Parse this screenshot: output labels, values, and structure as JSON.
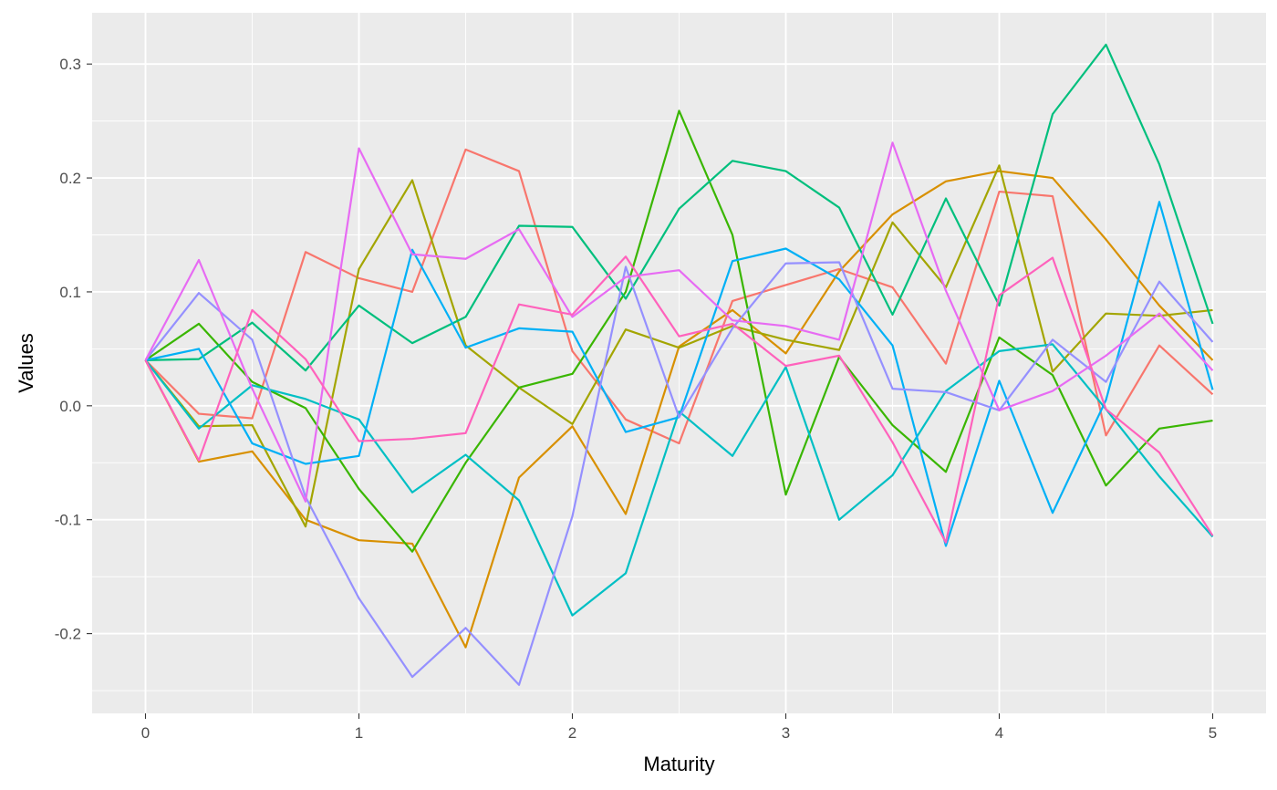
{
  "chart_data": {
    "type": "line",
    "xlabel": "Maturity",
    "ylabel": "Values",
    "xlim": [
      -0.25,
      5.25
    ],
    "ylim": [
      -0.27,
      0.345
    ],
    "x_ticks": [
      0,
      1,
      2,
      3,
      4,
      5
    ],
    "x_tick_labels": [
      "0",
      "1",
      "2",
      "3",
      "4",
      "5"
    ],
    "y_ticks": [
      -0.2,
      -0.1,
      0.0,
      0.1,
      0.2,
      0.3
    ],
    "y_tick_labels": [
      "-0.2",
      "-0.1",
      "0.0",
      "0.1",
      "0.2",
      "0.3"
    ],
    "grid": true,
    "legend": "none",
    "background": "#ebebeb",
    "x": [
      0,
      0.25,
      0.5,
      0.75,
      1,
      1.25,
      1.5,
      1.75,
      2,
      2.25,
      2.5,
      2.75,
      3,
      3.25,
      3.5,
      3.75,
      4,
      4.25,
      4.5,
      4.75,
      5
    ],
    "series": [
      {
        "color": "#F8766D",
        "values": [
          0.04,
          -0.007,
          -0.011,
          0.135,
          0.112,
          0.1,
          0.225,
          0.206,
          0.048,
          -0.012,
          -0.033,
          0.092,
          0.106,
          0.12,
          0.104,
          0.037,
          0.188,
          0.184,
          -0.026,
          0.053,
          0.01
        ]
      },
      {
        "color": "#D89000",
        "values": [
          0.04,
          -0.049,
          -0.04,
          -0.1,
          -0.118,
          -0.121,
          -0.212,
          -0.063,
          -0.018,
          -0.095,
          0.052,
          0.084,
          0.046,
          0.118,
          0.168,
          0.197,
          0.206,
          0.2,
          0.146,
          0.088,
          0.04
        ]
      },
      {
        "color": "#A3A500",
        "values": [
          0.04,
          -0.018,
          -0.017,
          -0.106,
          0.12,
          0.198,
          0.053,
          0.016,
          -0.016,
          0.067,
          0.051,
          0.07,
          0.058,
          0.049,
          0.161,
          0.104,
          0.211,
          0.03,
          0.081,
          0.079,
          0.084
        ]
      },
      {
        "color": "#39B600",
        "values": [
          0.04,
          0.072,
          0.021,
          -0.002,
          -0.073,
          -0.128,
          -0.05,
          0.016,
          0.028,
          0.1,
          0.259,
          0.15,
          -0.078,
          0.043,
          -0.017,
          -0.058,
          0.06,
          0.027,
          -0.07,
          -0.02,
          -0.013
        ]
      },
      {
        "color": "#00BF7D",
        "values": [
          0.04,
          0.041,
          0.073,
          0.031,
          0.088,
          0.055,
          0.078,
          0.158,
          0.157,
          0.094,
          0.173,
          0.215,
          0.206,
          0.174,
          0.08,
          0.182,
          0.088,
          0.256,
          0.317,
          0.212,
          0.072
        ]
      },
      {
        "color": "#00BFC4",
        "values": [
          0.04,
          -0.02,
          0.018,
          0.006,
          -0.012,
          -0.076,
          -0.043,
          -0.083,
          -0.184,
          -0.147,
          -0.005,
          -0.044,
          0.034,
          -0.1,
          -0.061,
          0.013,
          0.048,
          0.054,
          -0.003,
          -0.062,
          -0.115
        ]
      },
      {
        "color": "#00B0F6",
        "values": [
          0.04,
          0.05,
          -0.033,
          -0.051,
          -0.044,
          0.137,
          0.051,
          0.068,
          0.065,
          -0.023,
          -0.01,
          0.127,
          0.138,
          0.111,
          0.053,
          -0.123,
          0.022,
          -0.094,
          0.005,
          0.179,
          0.014
        ]
      },
      {
        "color": "#9590FF",
        "values": [
          0.04,
          0.099,
          0.058,
          -0.08,
          -0.169,
          -0.238,
          -0.195,
          -0.245,
          -0.097,
          0.122,
          -0.01,
          0.068,
          0.125,
          0.126,
          0.015,
          0.012,
          -0.004,
          0.058,
          0.021,
          0.109,
          0.056
        ]
      },
      {
        "color": "#E76BF3",
        "values": [
          0.04,
          0.128,
          0.015,
          -0.084,
          0.226,
          0.133,
          0.129,
          0.155,
          0.078,
          0.113,
          0.119,
          0.075,
          0.07,
          0.058,
          0.231,
          0.101,
          -0.004,
          0.013,
          0.044,
          0.081,
          0.031
        ]
      },
      {
        "color": "#FF62BC",
        "values": [
          0.04,
          -0.048,
          0.084,
          0.041,
          -0.031,
          -0.029,
          -0.024,
          0.089,
          0.08,
          0.131,
          0.061,
          0.072,
          0.035,
          0.044,
          -0.032,
          -0.12,
          0.097,
          0.13,
          -0.003,
          -0.041,
          -0.114
        ]
      }
    ]
  }
}
